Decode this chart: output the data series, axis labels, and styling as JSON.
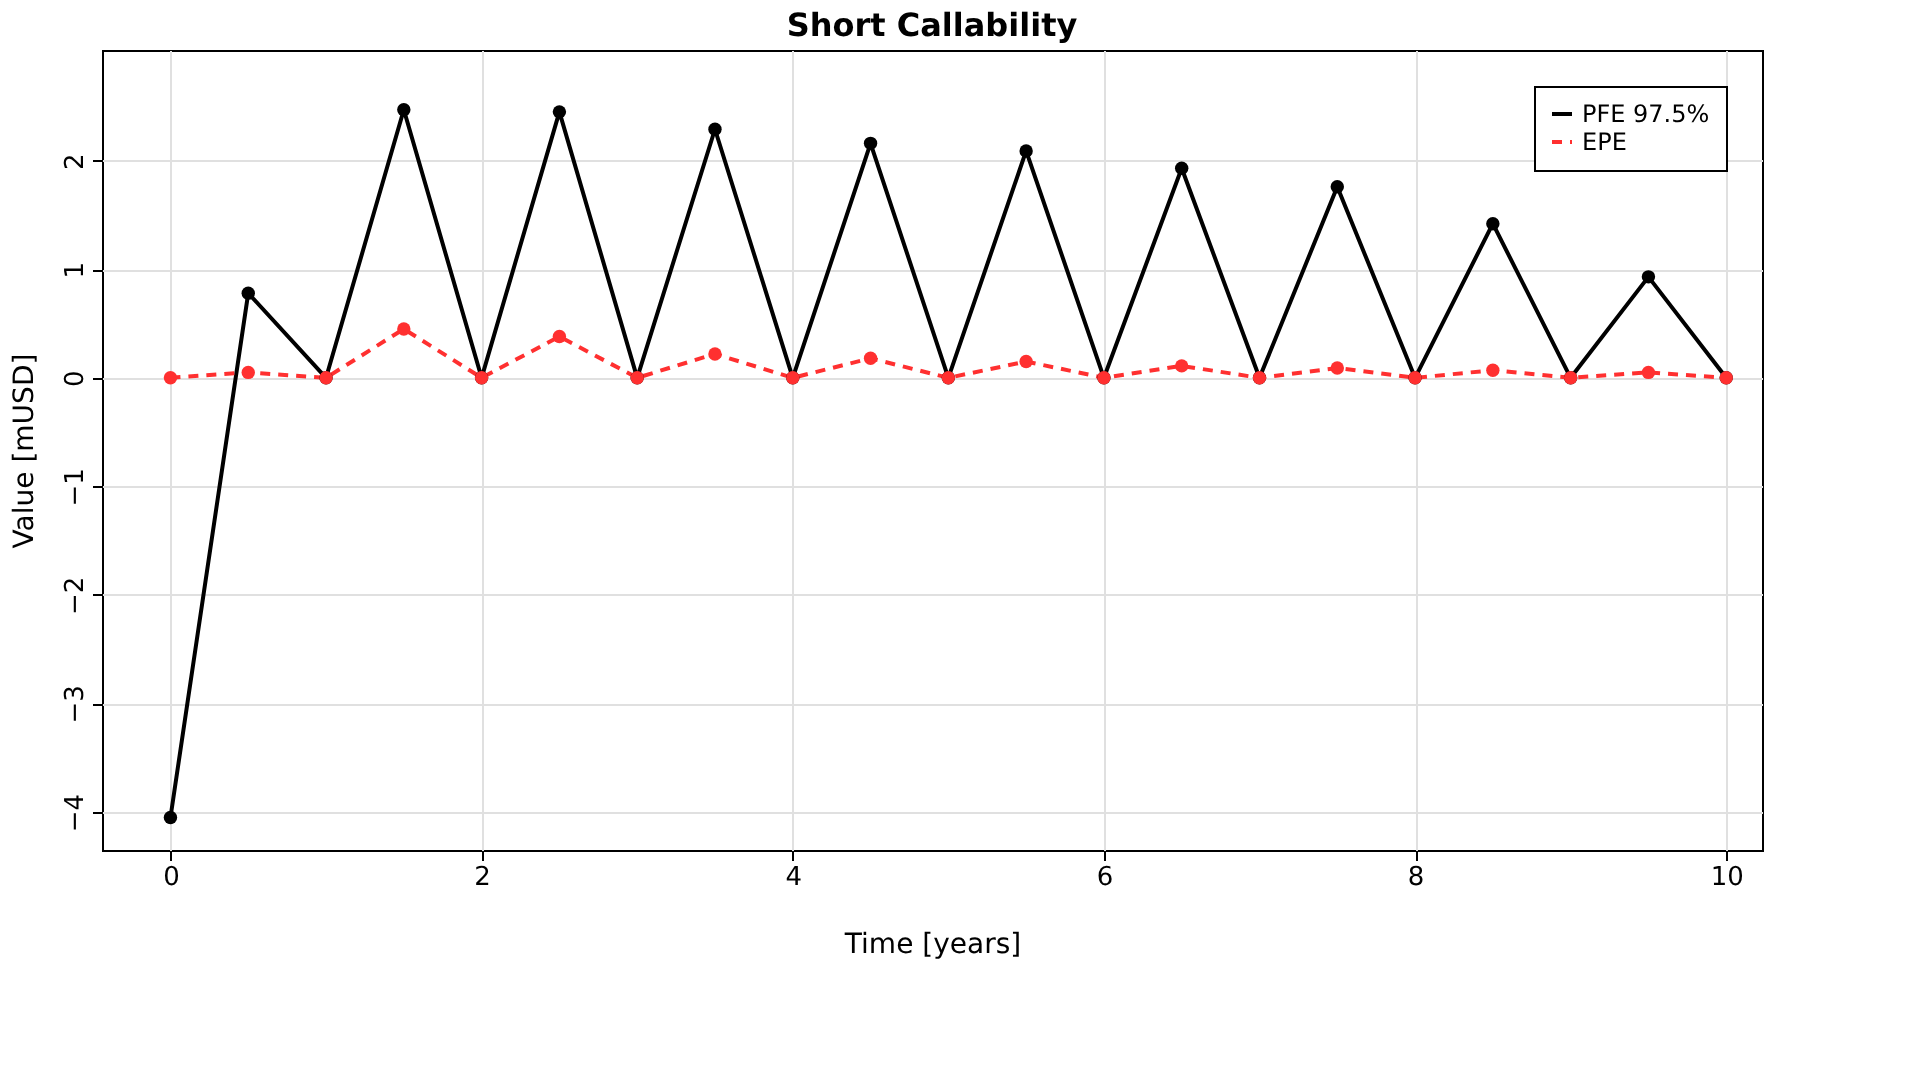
{
  "chart_data": {
    "type": "line",
    "title": "Short Callability",
    "xlabel": "Time [years]",
    "ylabel": "Value [mUSD]",
    "x": [
      0,
      0.5,
      1,
      1.5,
      2,
      2.5,
      3,
      3.5,
      4,
      4.5,
      5,
      5.5,
      6,
      6.5,
      7,
      7.5,
      8,
      8.5,
      9,
      9.5,
      10
    ],
    "series": [
      {
        "name": "PFE 97.5%",
        "color": "#000000",
        "line_style": "solid",
        "values": [
          -4.05,
          0.78,
          0,
          2.47,
          0,
          2.45,
          0,
          2.29,
          0,
          2.16,
          0,
          2.09,
          0,
          1.93,
          0,
          1.76,
          0,
          1.42,
          0,
          0.93,
          0
        ]
      },
      {
        "name": "EPE",
        "color": "#ff3030",
        "line_style": "dashed",
        "values": [
          0,
          0.05,
          0,
          0.45,
          0,
          0.38,
          0,
          0.22,
          0,
          0.18,
          0,
          0.15,
          0,
          0.11,
          0,
          0.09,
          0,
          0.07,
          0,
          0.05,
          0
        ]
      }
    ],
    "xlim": [
      -0.44,
      10.23
    ],
    "ylim": [
      -4.35,
      3.02
    ],
    "xticks": [
      0,
      2,
      4,
      6,
      8,
      10
    ],
    "yticks": [
      -4,
      -3,
      -2,
      -1,
      0,
      1,
      2
    ],
    "grid": true,
    "legend": "top right",
    "marker": "circle"
  }
}
